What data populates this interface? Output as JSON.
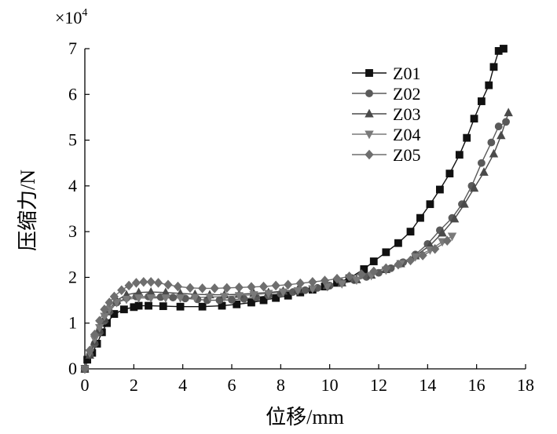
{
  "chart_data": {
    "type": "line",
    "title": "",
    "xlabel": "位移/mm",
    "ylabel": "压缩力/N",
    "y_multiplier": "×10",
    "y_multiplier_exp": "4",
    "xlim": [
      0,
      18
    ],
    "ylim": [
      0,
      7
    ],
    "xticks": [
      "0",
      "2",
      "4",
      "6",
      "8",
      "10",
      "12",
      "14",
      "16",
      "18"
    ],
    "yticks": [
      "0",
      "1",
      "2",
      "3",
      "4",
      "5",
      "6",
      "7"
    ],
    "legend_position": "top-right",
    "series": [
      {
        "name": "Z01",
        "marker": "square",
        "color": "#111111",
        "x": [
          0,
          0.1,
          0.3,
          0.5,
          0.7,
          0.9,
          1.2,
          1.6,
          2.0,
          2.2,
          2.6,
          3.2,
          3.9,
          4.8,
          5.6,
          6.2,
          6.8,
          7.3,
          7.8,
          8.3,
          8.8,
          9.3,
          9.8,
          10.3,
          10.8,
          11.4,
          11.8,
          12.3,
          12.8,
          13.3,
          13.7,
          14.1,
          14.5,
          14.9,
          15.3,
          15.6,
          15.9,
          16.2,
          16.5,
          16.7,
          16.9,
          17.1
        ],
        "y": [
          0,
          0.2,
          0.35,
          0.55,
          0.8,
          1.0,
          1.2,
          1.3,
          1.35,
          1.38,
          1.38,
          1.37,
          1.36,
          1.36,
          1.38,
          1.41,
          1.45,
          1.5,
          1.55,
          1.6,
          1.67,
          1.73,
          1.8,
          1.88,
          1.98,
          2.18,
          2.35,
          2.55,
          2.75,
          3.0,
          3.3,
          3.6,
          3.92,
          4.27,
          4.68,
          5.05,
          5.47,
          5.85,
          6.2,
          6.6,
          6.95,
          7.0
        ]
      },
      {
        "name": "Z02",
        "marker": "circle",
        "color": "#5a5a5a",
        "x": [
          0,
          0.2,
          0.4,
          0.6,
          0.8,
          1.0,
          1.3,
          1.7,
          2.1,
          2.6,
          3.1,
          3.6,
          4.1,
          4.6,
          5.0,
          5.5,
          6.0,
          6.5,
          7.0,
          7.5,
          8.0,
          8.5,
          9.0,
          9.5,
          10.0,
          10.5,
          11.0,
          11.5,
          12.0,
          12.5,
          13.0,
          13.5,
          14.0,
          14.5,
          15.0,
          15.4,
          15.8,
          16.2,
          16.6,
          16.9,
          17.2
        ],
        "y": [
          0,
          0.3,
          0.55,
          0.8,
          1.05,
          1.25,
          1.45,
          1.55,
          1.58,
          1.58,
          1.57,
          1.56,
          1.54,
          1.52,
          1.5,
          1.5,
          1.51,
          1.53,
          1.56,
          1.6,
          1.64,
          1.68,
          1.72,
          1.77,
          1.82,
          1.88,
          1.94,
          2.01,
          2.1,
          2.2,
          2.33,
          2.5,
          2.73,
          3.03,
          3.3,
          3.6,
          4.0,
          4.5,
          4.95,
          5.3,
          5.4
        ]
      },
      {
        "name": "Z03",
        "marker": "triangle-up",
        "color": "#4a4a4a",
        "x": [
          0,
          0.2,
          0.4,
          0.6,
          0.8,
          1.0,
          1.3,
          1.7,
          2.2,
          2.7,
          3.3,
          3.9,
          4.5,
          5.1,
          5.7,
          6.3,
          6.9,
          7.5,
          8.1,
          8.7,
          9.3,
          9.9,
          10.5,
          11.1,
          11.7,
          12.3,
          12.9,
          13.5,
          14.1,
          14.6,
          15.1,
          15.5,
          15.9,
          16.3,
          16.7,
          17.0,
          17.3
        ],
        "y": [
          0,
          0.3,
          0.6,
          0.85,
          1.1,
          1.3,
          1.5,
          1.62,
          1.67,
          1.68,
          1.67,
          1.65,
          1.63,
          1.62,
          1.62,
          1.63,
          1.65,
          1.67,
          1.7,
          1.73,
          1.77,
          1.82,
          1.88,
          1.95,
          2.05,
          2.17,
          2.3,
          2.47,
          2.7,
          2.97,
          3.28,
          3.6,
          3.95,
          4.3,
          4.7,
          5.1,
          5.6
        ]
      },
      {
        "name": "Z04",
        "marker": "triangle-down",
        "color": "#7a7a7a",
        "x": [
          0,
          0.2,
          0.4,
          0.6,
          0.8,
          1.0,
          1.3,
          1.7,
          2.2,
          2.7,
          3.3,
          3.9,
          4.5,
          5.1,
          5.7,
          6.3,
          6.9,
          7.5,
          8.1,
          8.7,
          9.3,
          9.9,
          10.5,
          11.1,
          11.7,
          12.3,
          12.9,
          13.5,
          14.1,
          14.6,
          15.0
        ],
        "y": [
          0,
          0.35,
          0.65,
          0.9,
          1.15,
          1.3,
          1.45,
          1.52,
          1.55,
          1.55,
          1.55,
          1.55,
          1.56,
          1.57,
          1.58,
          1.6,
          1.62,
          1.65,
          1.68,
          1.71,
          1.75,
          1.8,
          1.86,
          1.94,
          2.04,
          2.16,
          2.3,
          2.45,
          2.6,
          2.78,
          2.9
        ]
      },
      {
        "name": "Z05",
        "marker": "diamond",
        "color": "#6e6e6e",
        "x": [
          0,
          0.2,
          0.4,
          0.6,
          0.8,
          1.0,
          1.2,
          1.5,
          1.8,
          2.1,
          2.4,
          2.7,
          3.0,
          3.4,
          3.8,
          4.3,
          4.8,
          5.3,
          5.8,
          6.3,
          6.8,
          7.3,
          7.8,
          8.3,
          8.8,
          9.3,
          9.8,
          10.3,
          10.8,
          11.3,
          11.8,
          12.3,
          12.8,
          13.3,
          13.8,
          14.3,
          14.8
        ],
        "y": [
          0,
          0.4,
          0.75,
          1.05,
          1.3,
          1.45,
          1.58,
          1.72,
          1.82,
          1.88,
          1.9,
          1.9,
          1.88,
          1.84,
          1.8,
          1.77,
          1.76,
          1.76,
          1.77,
          1.78,
          1.79,
          1.8,
          1.82,
          1.84,
          1.87,
          1.9,
          1.93,
          1.97,
          2.02,
          2.07,
          2.13,
          2.2,
          2.28,
          2.37,
          2.48,
          2.62,
          2.8
        ]
      }
    ]
  }
}
